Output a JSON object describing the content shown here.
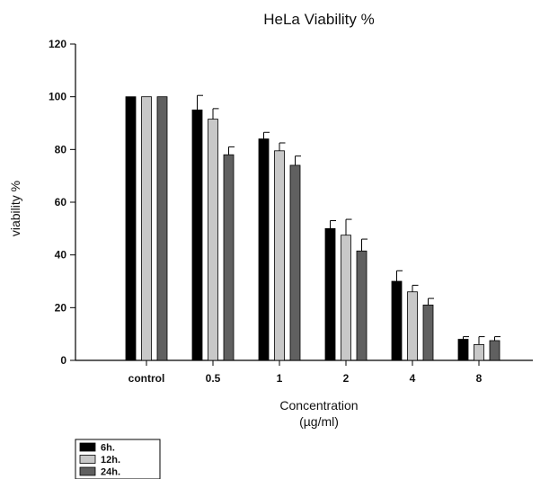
{
  "chart_data": {
    "type": "bar",
    "title": "HeLa Viability %",
    "xlabel": "Concentration",
    "xlabel_unit": "(µg/ml)",
    "ylabel": "viability %",
    "ylim": [
      0,
      120
    ],
    "yticks": [
      0,
      20,
      40,
      60,
      80,
      100,
      120
    ],
    "categories": [
      "control",
      "0.5",
      "1",
      "2",
      "4",
      "8"
    ],
    "series": [
      {
        "name": "6h.",
        "color": "#000000",
        "values": [
          100,
          95,
          84,
          50,
          30,
          8
        ],
        "errors": [
          0,
          5.5,
          2.5,
          3,
          4,
          1
        ]
      },
      {
        "name": "12h.",
        "color": "#c8c8c8",
        "values": [
          100,
          91.5,
          79.5,
          47.5,
          26,
          6
        ],
        "errors": [
          0,
          4,
          3,
          6,
          2.5,
          3
        ]
      },
      {
        "name": "24h.",
        "color": "#606060",
        "values": [
          100,
          78,
          74,
          41.5,
          21,
          7.5
        ],
        "errors": [
          0,
          3,
          3.5,
          4.5,
          2.5,
          1.5
        ]
      }
    ],
    "legend_position": "bottom-left",
    "grid": false
  }
}
